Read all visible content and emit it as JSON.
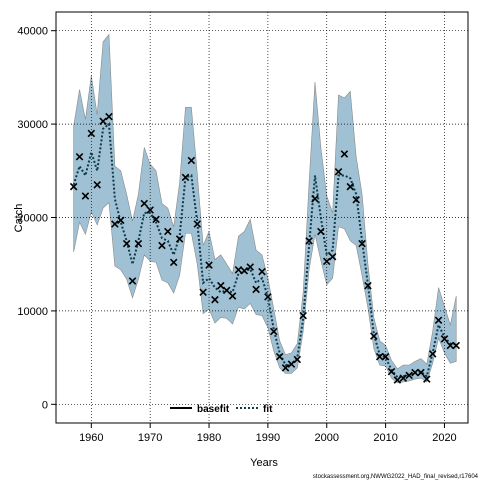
{
  "chart_data": {
    "type": "line",
    "title": "",
    "xlabel": "Years",
    "ylabel": "Catch",
    "xlim": [
      1954,
      2024
    ],
    "ylim": [
      -2000,
      42000
    ],
    "x_ticks": [
      1960,
      1970,
      1980,
      1990,
      2000,
      2010,
      2020
    ],
    "y_ticks": [
      0,
      10000,
      20000,
      30000,
      40000
    ],
    "grid": true,
    "legend_position": "bottom-center",
    "band_color": "#9fc1d3",
    "band_edge_color": "#8a8a8a",
    "fit_color": "#0d3a4d",
    "observed_color": "#000000",
    "x": [
      1957,
      1958,
      1959,
      1960,
      1961,
      1962,
      1963,
      1964,
      1965,
      1966,
      1967,
      1968,
      1969,
      1970,
      1971,
      1972,
      1973,
      1974,
      1975,
      1976,
      1977,
      1978,
      1979,
      1980,
      1981,
      1982,
      1983,
      1984,
      1985,
      1986,
      1987,
      1988,
      1989,
      1990,
      1991,
      1992,
      1993,
      1994,
      1995,
      1996,
      1997,
      1998,
      1999,
      2000,
      2001,
      2002,
      2003,
      2004,
      2005,
      2006,
      2007,
      2008,
      2009,
      2010,
      2011,
      2012,
      2013,
      2014,
      2015,
      2016,
      2017,
      2018,
      2019,
      2020,
      2021,
      2022
    ],
    "series": [
      {
        "name": "basefit",
        "style": "solid",
        "values": [
          23300,
          26500,
          22300,
          29000,
          23500,
          30300,
          30800,
          19300,
          19700,
          17200,
          13200,
          17200,
          21500,
          20800,
          19800,
          17000,
          18500,
          15200,
          17700,
          24300,
          26100,
          19300,
          12000,
          14900,
          11200,
          12700,
          12200,
          11600,
          14400,
          14300,
          14700,
          12300,
          14200,
          11500,
          7800,
          5100,
          3900,
          4300,
          4800,
          9500,
          17500,
          22000,
          18500,
          15300,
          15800,
          24900,
          26800,
          23300,
          21900,
          17200,
          12700,
          7300,
          5100,
          5100,
          3500,
          2600,
          2800,
          3100,
          3400,
          3400,
          2700,
          5400,
          9000,
          7000,
          6300,
          6300
        ]
      },
      {
        "name": "fit",
        "style": "dotted",
        "values": [
          23500,
          25500,
          24500,
          27000,
          25000,
          29500,
          30000,
          22000,
          19500,
          17500,
          15000,
          17500,
          20500,
          20500,
          19500,
          17800,
          17500,
          16000,
          18000,
          24300,
          24500,
          19500,
          13000,
          13500,
          12500,
          12000,
          12200,
          12000,
          14000,
          14200,
          14500,
          13000,
          13500,
          11500,
          8000,
          5500,
          4200,
          4300,
          5000,
          9200,
          17000,
          24500,
          20000,
          16000,
          16500,
          24500,
          24500,
          24200,
          22500,
          17500,
          12800,
          7500,
          5300,
          5000,
          3700,
          2900,
          3000,
          3200,
          3400,
          3500,
          3000,
          5500,
          8500,
          7200,
          6500,
          6400
        ]
      }
    ],
    "band_upper": [
      29800,
      33700,
      30500,
      35200,
      31000,
      38800,
      39600,
      25500,
      25000,
      22500,
      19600,
      22500,
      27500,
      25700,
      25000,
      21500,
      21000,
      19000,
      23700,
      31800,
      31800,
      24700,
      17000,
      18500,
      15500,
      16000,
      15000,
      14000,
      18000,
      18500,
      19800,
      16500,
      16000,
      13500,
      10200,
      6800,
      5300,
      5500,
      6500,
      12000,
      23700,
      34500,
      27500,
      22300,
      20500,
      33100,
      32800,
      33500,
      26500,
      22500,
      15000,
      9300,
      6800,
      6300,
      4700,
      3800,
      4200,
      4200,
      4600,
      4900,
      4300,
      7800,
      12500,
      10500,
      8500,
      11600
    ],
    "band_lower": [
      16300,
      19500,
      18200,
      20600,
      19200,
      21000,
      21600,
      14800,
      14400,
      13400,
      11400,
      13400,
      16000,
      15300,
      15200,
      13300,
      13000,
      11900,
      13800,
      18300,
      18300,
      15000,
      9700,
      10200,
      8700,
      9300,
      9200,
      8600,
      10400,
      10200,
      10800,
      9600,
      9500,
      8200,
      5700,
      3900,
      3300,
      3300,
      3900,
      7800,
      14400,
      18200,
      15400,
      12800,
      13500,
      19000,
      18800,
      17500,
      17000,
      13800,
      10300,
      6000,
      4200,
      4100,
      2800,
      2300,
      2400,
      2500,
      2700,
      2800,
      2400,
      4400,
      7100,
      5500,
      4400,
      4600
    ]
  },
  "legend": {
    "basefit_label": "basefit",
    "fit_label": "fit"
  },
  "footnote": "stockassessment.org,NWWG2022_HAD_final_revised,r17604"
}
